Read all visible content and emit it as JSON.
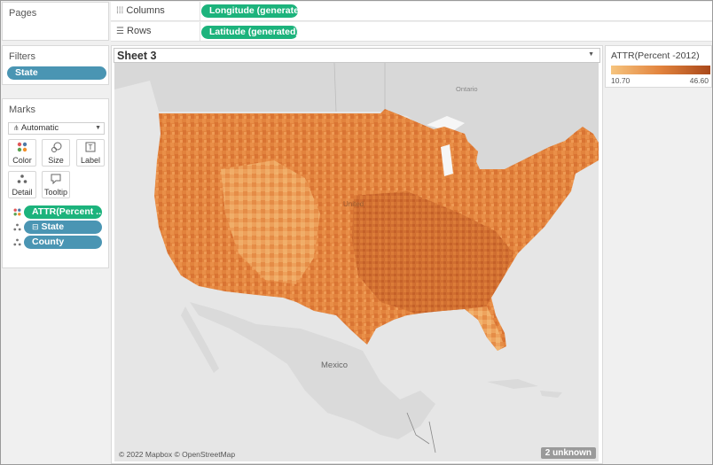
{
  "pages": {
    "title": "Pages"
  },
  "shelves": {
    "columns_label": "Columns",
    "columns_pill": "Longitude (generate..",
    "rows_label": "Rows",
    "rows_pill": "Latitude (generated)"
  },
  "filters": {
    "title": "Filters",
    "pill": "State"
  },
  "marks": {
    "title": "Marks",
    "type_value": "Automatic",
    "buttons": {
      "color": "Color",
      "size": "Size",
      "label": "Label",
      "detail": "Detail",
      "tooltip": "Tooltip"
    },
    "fields": [
      "ATTR(Percent ..",
      "State",
      "County"
    ]
  },
  "sheet": {
    "title": "Sheet 3"
  },
  "legend": {
    "title": "ATTR(Percent -2012)",
    "min": "10.70",
    "max": "46.60",
    "color_low": "#f6c47e",
    "color_high": "#a9481a"
  },
  "map": {
    "labels": {
      "ontario": "Ontario",
      "united": "United",
      "mexico": "Mexico"
    },
    "attribution": "© 2022 Mapbox © OpenStreetMap",
    "unknown_badge": "2 unknown"
  }
}
